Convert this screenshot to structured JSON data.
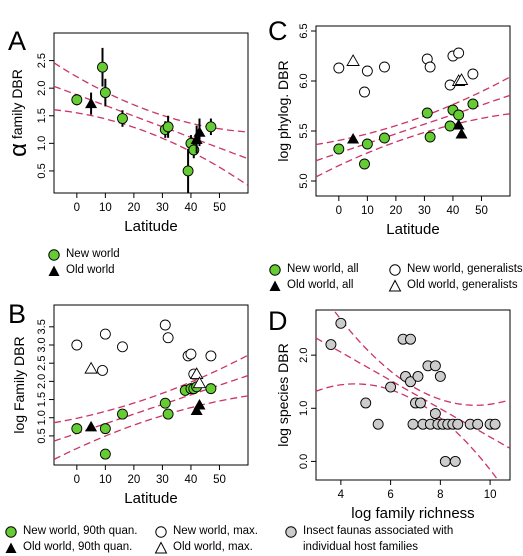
{
  "colors": {
    "green": "#66CC33",
    "black": "#000000",
    "white": "#FFFFFF",
    "gray": "#CCCCCC",
    "fit": "#CC3366"
  },
  "chart_data": [
    {
      "panel": "A",
      "type": "scatter",
      "ylabel_symbol": "α",
      "ylabel": "family DBR",
      "xlabel": "Latitude",
      "xlim": [
        -8,
        60
      ],
      "ylim": [
        0.1,
        3.0
      ],
      "xticks": [
        "0",
        "10",
        "20",
        "30",
        "40",
        "50"
      ],
      "xtick_values": [
        0,
        10,
        20,
        30,
        40,
        50
      ],
      "yticks": [
        "0.5",
        "1.0",
        "1.5",
        "2.0",
        "2.5"
      ],
      "ytick_values": [
        0.5,
        1.0,
        1.5,
        2.0,
        2.5
      ],
      "series": [
        {
          "name": "New world",
          "marker": "circle",
          "fill": "green",
          "points": [
            [
              0,
              1.79,
              0.1
            ],
            [
              9,
              2.38,
              0.35
            ],
            [
              10,
              1.92,
              0.25
            ],
            [
              16,
              1.45,
              0.15
            ],
            [
              31,
              1.25,
              0.15
            ],
            [
              32,
              1.3,
              0.2
            ],
            [
              39,
              0.5,
              0.4
            ],
            [
              40,
              1.0,
              0.15
            ],
            [
              41,
              0.88,
              0.15
            ],
            [
              47,
              1.3,
              0.15
            ]
          ]
        },
        {
          "name": "Old world",
          "marker": "triangle",
          "fill": "black",
          "points": [
            [
              5,
              1.72,
              0.2
            ],
            [
              42,
              1.07,
              0.25
            ],
            [
              43,
              1.2,
              0.25
            ]
          ]
        }
      ],
      "fit": {
        "slope": -0.0193,
        "intercept": 1.88,
        "band_half_width": 0.2,
        "band_ref_x": 24,
        "band_curvature": 0.00022
      }
    },
    {
      "panel": "B",
      "type": "scatter",
      "ylabel": "log Family DBR",
      "xlabel": "Latitude",
      "xlim": [
        -8,
        60
      ],
      "ylim": [
        -0.3,
        4.1
      ],
      "xticks": [
        "0",
        "10",
        "20",
        "30",
        "40",
        "50"
      ],
      "xtick_values": [
        0,
        10,
        20,
        30,
        40,
        50
      ],
      "yticks": [
        "0.5",
        "1.0",
        "1.5",
        "2.0",
        "2.5",
        "3.0",
        "3.5"
      ],
      "ytick_values": [
        0.5,
        1.0,
        1.5,
        2.0,
        2.5,
        3.0,
        3.5
      ],
      "series": [
        {
          "name": "New world, 90th quan.",
          "marker": "circle",
          "fill": "green",
          "points": [
            [
              0,
              0.7
            ],
            [
              10,
              0.7
            ],
            [
              10,
              0.0
            ],
            [
              16,
              1.1
            ],
            [
              31,
              1.4
            ],
            [
              32,
              1.1
            ],
            [
              38,
              1.75
            ],
            [
              40,
              1.8
            ],
            [
              41,
              1.8
            ],
            [
              42,
              1.85
            ],
            [
              47,
              1.8
            ]
          ]
        },
        {
          "name": "Old world, 90th quan.",
          "marker": "triangle",
          "fill": "black",
          "points": [
            [
              5,
              0.75
            ],
            [
              42,
              1.2
            ],
            [
              43,
              1.35
            ]
          ]
        },
        {
          "name": "New world, max.",
          "marker": "circle",
          "fill": "white",
          "points": [
            [
              0,
              3.0
            ],
            [
              9,
              2.3
            ],
            [
              10,
              3.3
            ],
            [
              16,
              2.95
            ],
            [
              31,
              3.55
            ],
            [
              32,
              3.2
            ],
            [
              39,
              2.7
            ],
            [
              40,
              2.75
            ],
            [
              41,
              2.2
            ],
            [
              47,
              2.7
            ]
          ]
        },
        {
          "name": "Old world, max.",
          "marker": "triangle",
          "fill": "white",
          "points": [
            [
              5,
              2.35
            ],
            [
              42,
              2.2
            ],
            [
              43,
              1.95
            ]
          ]
        }
      ],
      "fit": {
        "slope": 0.0265,
        "intercept": 0.57,
        "band_half_width": 0.3,
        "band_ref_x": 24,
        "band_curvature": 0.0002
      }
    },
    {
      "panel": "C",
      "type": "scatter",
      "ylabel": "log phylog. DBR",
      "xlabel": "Latitude",
      "xlim": [
        -8,
        60
      ],
      "ylim": [
        4.85,
        6.55
      ],
      "xticks": [
        "0",
        "10",
        "20",
        "30",
        "40",
        "50"
      ],
      "xtick_values": [
        0,
        10,
        20,
        30,
        40,
        50
      ],
      "yticks": [
        "5.0",
        "5.5",
        "6.0",
        "6.5"
      ],
      "ytick_values": [
        5.0,
        5.5,
        6.0,
        6.5
      ],
      "series": [
        {
          "name": "New world, all",
          "marker": "circle",
          "fill": "green",
          "points": [
            [
              0,
              5.32
            ],
            [
              9,
              5.17
            ],
            [
              10,
              5.37
            ],
            [
              16,
              5.43
            ],
            [
              31,
              5.68
            ],
            [
              32,
              5.44
            ],
            [
              39,
              5.55
            ],
            [
              40,
              5.71
            ],
            [
              42,
              5.66
            ],
            [
              47,
              5.77
            ]
          ]
        },
        {
          "name": "Old world, all",
          "marker": "triangle",
          "fill": "black",
          "points": [
            [
              5,
              5.42
            ],
            [
              42,
              5.56
            ],
            [
              43,
              5.47
            ]
          ]
        },
        {
          "name": "New world, generalists",
          "marker": "circle",
          "fill": "white",
          "points": [
            [
              0,
              6.13
            ],
            [
              9,
              5.89
            ],
            [
              10,
              6.1
            ],
            [
              16,
              6.14
            ],
            [
              31,
              6.22
            ],
            [
              32,
              6.14
            ],
            [
              39,
              5.96
            ],
            [
              40,
              6.25
            ],
            [
              42,
              6.28
            ],
            [
              47,
              6.07
            ]
          ]
        },
        {
          "name": "Old world, generalists",
          "marker": "triangle",
          "fill": "white",
          "points": [
            [
              5,
              6.2
            ],
            [
              42,
              6.0
            ],
            [
              43,
              6.01
            ]
          ]
        }
      ],
      "fit": {
        "slope": 0.0096,
        "intercept": 5.28,
        "band_half_width": 0.08,
        "band_ref_x": 24,
        "band_curvature": 8e-05
      }
    },
    {
      "panel": "D",
      "type": "scatter",
      "ylabel": "log species DBR",
      "xlabel": "log family richness",
      "xlim": [
        3.0,
        10.8
      ],
      "ylim": [
        -0.35,
        2.85
      ],
      "xticks": [
        "4",
        "6",
        "8",
        "10"
      ],
      "xtick_values": [
        4,
        6,
        8,
        10
      ],
      "yticks": [
        "0.0",
        "1.0",
        "2.0"
      ],
      "ytick_values": [
        0.0,
        1.0,
        2.0
      ],
      "series": [
        {
          "name": "Insect faunas associated with individual host families",
          "marker": "circle",
          "fill": "gray",
          "points": [
            [
              3.6,
              2.2
            ],
            [
              4.0,
              2.6
            ],
            [
              5.0,
              1.1
            ],
            [
              5.5,
              0.7
            ],
            [
              6.0,
              1.4
            ],
            [
              6.5,
              2.3
            ],
            [
              6.6,
              1.6
            ],
            [
              6.8,
              2.3
            ],
            [
              6.8,
              1.5
            ],
            [
              6.9,
              0.7
            ],
            [
              7.0,
              1.1
            ],
            [
              7.1,
              1.6
            ],
            [
              7.2,
              1.1
            ],
            [
              7.3,
              0.7
            ],
            [
              7.5,
              1.8
            ],
            [
              7.6,
              0.7
            ],
            [
              7.8,
              1.8
            ],
            [
              7.8,
              0.9
            ],
            [
              7.9,
              0.7
            ],
            [
              8.0,
              1.6
            ],
            [
              8.1,
              0.7
            ],
            [
              8.2,
              0.0
            ],
            [
              8.3,
              0.7
            ],
            [
              8.5,
              0.7
            ],
            [
              8.6,
              0.0
            ],
            [
              8.7,
              0.7
            ],
            [
              9.2,
              0.7
            ],
            [
              9.5,
              0.7
            ],
            [
              10.0,
              0.7
            ],
            [
              10.2,
              0.7
            ]
          ]
        }
      ],
      "fit": {
        "slope": -0.266,
        "intercept": 3.12,
        "band_half_width": 0.12,
        "band_ref_x": 7.0,
        "band_curvature": 0.055
      }
    }
  ],
  "panels": {
    "A": {
      "letter": "A"
    },
    "B": {
      "letter": "B"
    },
    "C": {
      "letter": "C"
    },
    "D": {
      "letter": "D"
    }
  },
  "legends": {
    "A": [
      "New world",
      "Old world"
    ],
    "B": {
      "row1": [
        "New world, 90th quan.",
        "New world, max."
      ],
      "row2": [
        "Old world, 90th quan.",
        "Old world, max."
      ]
    },
    "C": {
      "row1": [
        "New world, all",
        "New world, generalists"
      ],
      "row2": [
        "Old world, all",
        "Old world, generalists"
      ]
    },
    "D": {
      "line1": "Insect faunas associated with",
      "line2": "individual host families"
    }
  }
}
